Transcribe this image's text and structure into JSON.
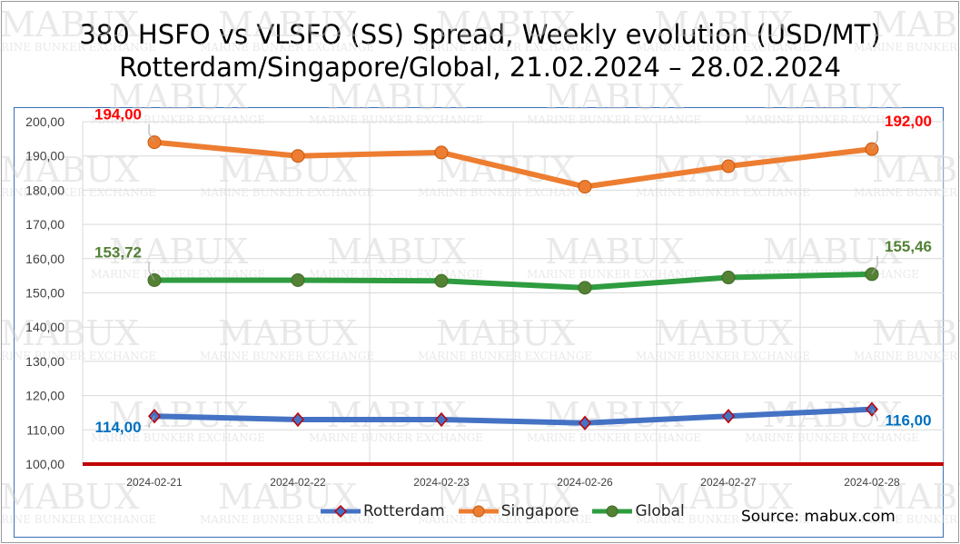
{
  "title_line1": "380 HSFO vs VLSFO (SS) Spread, Weekly evolution (USD/MT)",
  "title_line2": "Rotterdam/Singapore/Global, 21.02.2024 – 28.02.2024",
  "source": "Source: mabux.com",
  "watermark": {
    "brand": "MABUX",
    "tagline": "MARINE BUNKER EXCHANGE"
  },
  "colors": {
    "rotterdam": "#4472c4",
    "singapore": "#ed7d31",
    "global": "#2e9c3f",
    "reference": "#c00000",
    "grid": "#d9d9d9"
  },
  "chart_data": {
    "type": "line",
    "title": "380 HSFO vs VLSFO (SS) Spread, Weekly evolution (USD/MT) Rotterdam/Singapore/Global, 21.02.2024 – 28.02.2024",
    "categories": [
      "2024-02-21",
      "2024-02-22",
      "2024-02-23",
      "2024-02-26",
      "2024-02-27",
      "2024-02-28"
    ],
    "ylim": [
      100,
      200
    ],
    "yticks": [
      "100,00",
      "110,00",
      "120,00",
      "130,00",
      "140,00",
      "150,00",
      "160,00",
      "170,00",
      "180,00",
      "190,00",
      "200,00"
    ],
    "grid": true,
    "legend": "bottom",
    "series": [
      {
        "name": "Rotterdam",
        "values": [
          114.0,
          113.0,
          113.0,
          112.0,
          114.0,
          116.0
        ],
        "marker": "diamond",
        "labels": [
          {
            "index": 0,
            "text": "114,00",
            "color": "#0070c0"
          },
          {
            "index": 5,
            "text": "116,00",
            "color": "#0070c0"
          }
        ]
      },
      {
        "name": "Singapore",
        "values": [
          194.0,
          190.0,
          191.0,
          181.0,
          187.0,
          192.0
        ],
        "marker": "circle",
        "labels": [
          {
            "index": 0,
            "text": "194,00",
            "color": "#ff0000"
          },
          {
            "index": 5,
            "text": "192,00",
            "color": "#ff0000"
          }
        ]
      },
      {
        "name": "Global",
        "values": [
          153.72,
          153.72,
          153.5,
          151.5,
          154.5,
          155.46
        ],
        "marker": "circle",
        "labels": [
          {
            "index": 0,
            "text": "153,72",
            "color": "#538135"
          },
          {
            "index": 5,
            "text": "155,46",
            "color": "#538135"
          }
        ]
      }
    ]
  }
}
